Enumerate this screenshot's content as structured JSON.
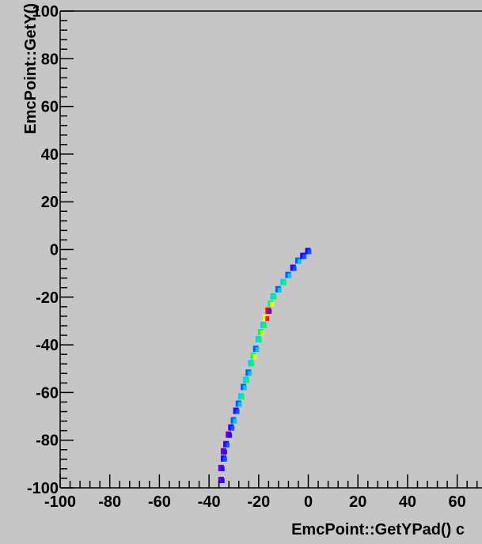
{
  "chart_data": {
    "type": "heatmap",
    "xlabel": "EmcPoint::GetYPad()  c",
    "ylabel": "EmcPoint::GetY()",
    "xlim": [
      -100,
      70
    ],
    "ylim": [
      -100,
      100
    ],
    "x_ticks": [
      "-100",
      "-80",
      "-60",
      "-40",
      "-20",
      "0",
      "20",
      "40",
      "60"
    ],
    "y_ticks": [
      "100",
      "80",
      "60",
      "40",
      "20",
      "0",
      "-20",
      "-40",
      "-60",
      "-80",
      "-100"
    ],
    "grid": false,
    "colors": {
      "background": "#c6c6c6",
      "frame": "#000000",
      "palette": [
        "#6a00d8",
        "#2a00ff",
        "#0060ff",
        "#00d0ff",
        "#00ff60",
        "#ffff00",
        "#ff0000"
      ]
    },
    "band": {
      "description_x_range": [
        -35,
        0
      ],
      "y_range": [
        -100,
        0
      ],
      "points": [
        {
          "x": -35,
          "y": -97,
          "level": 0
        },
        {
          "x": -35,
          "y": -92,
          "level": 0
        },
        {
          "x": -34,
          "y": -88,
          "level": 1
        },
        {
          "x": -34,
          "y": -85,
          "level": 0
        },
        {
          "x": -33,
          "y": -82,
          "level": 1
        },
        {
          "x": -32,
          "y": -78,
          "level": 0
        },
        {
          "x": -31,
          "y": -75,
          "level": 1
        },
        {
          "x": -30,
          "y": -72,
          "level": 2
        },
        {
          "x": -29,
          "y": -68,
          "level": 1
        },
        {
          "x": -28,
          "y": -65,
          "level": 2
        },
        {
          "x": -27,
          "y": -62,
          "level": 3
        },
        {
          "x": -26,
          "y": -58,
          "level": 2
        },
        {
          "x": -25,
          "y": -55,
          "level": 3
        },
        {
          "x": -24,
          "y": -52,
          "level": 2
        },
        {
          "x": -23,
          "y": -48,
          "level": 3
        },
        {
          "x": -22,
          "y": -45,
          "level": 4
        },
        {
          "x": -21,
          "y": -42,
          "level": 2
        },
        {
          "x": -20,
          "y": -38,
          "level": 3
        },
        {
          "x": -19,
          "y": -35,
          "level": 4
        },
        {
          "x": -18,
          "y": -32,
          "level": 3
        },
        {
          "x": -17,
          "y": -29,
          "level": 5
        },
        {
          "x": -16,
          "y": -26,
          "level": 6
        },
        {
          "x": -15,
          "y": -23,
          "level": 4
        },
        {
          "x": -14,
          "y": -20,
          "level": 3
        },
        {
          "x": -12,
          "y": -17,
          "level": 2
        },
        {
          "x": -10,
          "y": -14,
          "level": 3
        },
        {
          "x": -8,
          "y": -11,
          "level": 2
        },
        {
          "x": -6,
          "y": -8,
          "level": 1
        },
        {
          "x": -4,
          "y": -5,
          "level": 2
        },
        {
          "x": -2,
          "y": -3,
          "level": 1
        },
        {
          "x": 0,
          "y": -1,
          "level": 1
        }
      ]
    }
  }
}
